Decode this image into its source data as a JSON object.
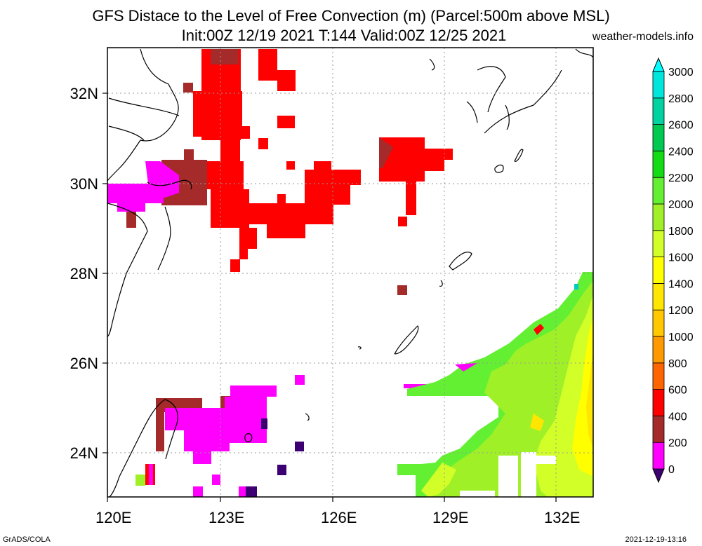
{
  "header": {
    "title_line1": "GFS Distace to the Level of Free Convection (m) (Parcel:500m above MSL)",
    "title_line2": "Init:00Z 12/19 2021 T:144 Valid:00Z 12/25 2021",
    "site": "weather-models.info"
  },
  "footer": {
    "left": "GrADS/COLA",
    "right": "2021-12-19-13:16"
  },
  "map": {
    "lon_labels": [
      "120E",
      "123E",
      "126E",
      "129E",
      "132E"
    ],
    "lat_labels": [
      "32N",
      "30N",
      "28N",
      "26N",
      "24N"
    ],
    "lon_range": [
      120,
      133
    ],
    "lat_range": [
      23,
      33
    ]
  },
  "colorbar": {
    "labels": [
      "0",
      "200",
      "400",
      "600",
      "800",
      "1000",
      "1200",
      "1400",
      "1600",
      "1800",
      "2000",
      "2200",
      "2400",
      "2600",
      "2800",
      "3000"
    ],
    "colors": [
      "#3c0073",
      "#ff00ff",
      "#a52a2a",
      "#ff0000",
      "#ff6600",
      "#ff9900",
      "#ffc800",
      "#ffe600",
      "#ffff00",
      "#d2ff28",
      "#a0f028",
      "#64f032",
      "#14dc14",
      "#00c850",
      "#00d2a0",
      "#00e6dc",
      "#00ffff"
    ]
  }
}
